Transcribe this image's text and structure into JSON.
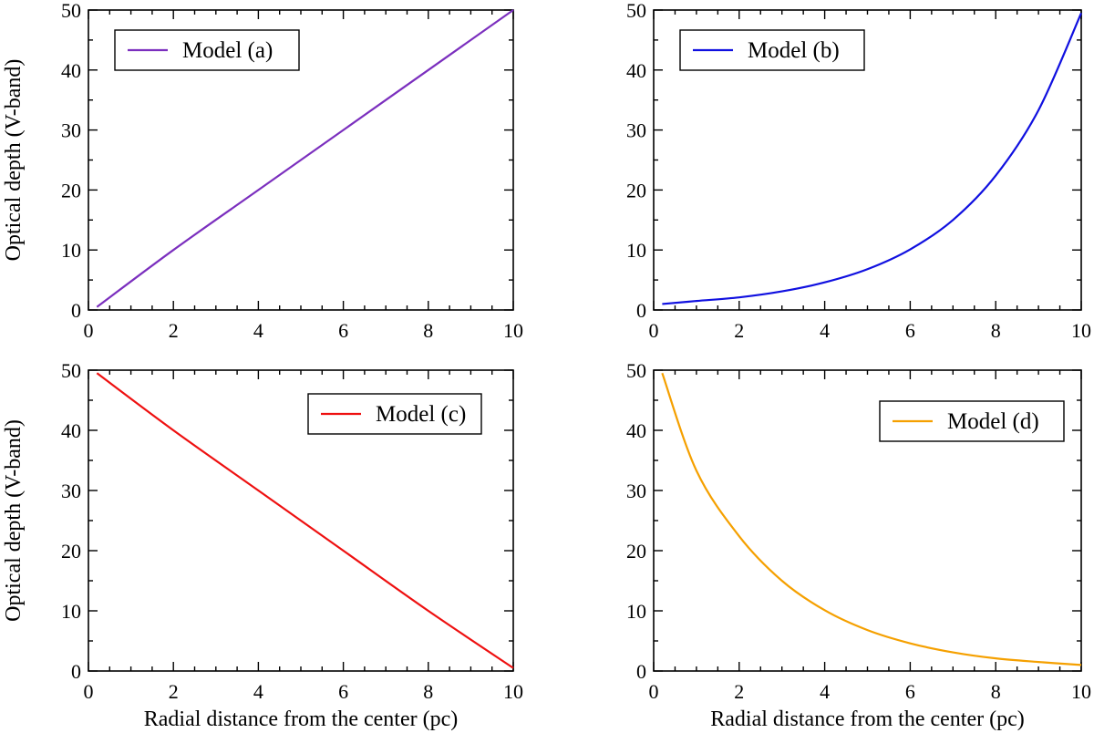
{
  "chart_data": [
    {
      "type": "line",
      "panel": "top-left",
      "series": [
        {
          "name": "Model (a)",
          "color": "#7b2fbe",
          "x": [
            0.2,
            2,
            4,
            6,
            8,
            10
          ],
          "y": [
            0.5,
            10,
            20,
            30,
            40,
            50
          ]
        }
      ],
      "xlim": [
        0,
        10
      ],
      "ylim": [
        0,
        50
      ],
      "xticks": [
        "0",
        "2",
        "4",
        "6",
        "8",
        "10"
      ],
      "yticks": [
        "0",
        "10",
        "20",
        "30",
        "40",
        "50"
      ],
      "xlabel": "",
      "ylabel": "Optical depth (V-band)",
      "legend_position": "top-left"
    },
    {
      "type": "line",
      "panel": "top-right",
      "series": [
        {
          "name": "Model (b)",
          "color": "#1010e0",
          "x": [
            0.2,
            1,
            2,
            3,
            4,
            5,
            6,
            7,
            8,
            9,
            10
          ],
          "y": [
            1.0,
            1.5,
            2.1,
            3.1,
            4.6,
            6.8,
            10.1,
            15.0,
            22.4,
            33.3,
            49.5
          ]
        }
      ],
      "xlim": [
        0,
        10
      ],
      "ylim": [
        0,
        50
      ],
      "xticks": [
        "0",
        "2",
        "4",
        "6",
        "8",
        "10"
      ],
      "yticks": [
        "0",
        "10",
        "20",
        "30",
        "40",
        "50"
      ],
      "xlabel": "",
      "ylabel": "",
      "legend_position": "top-left"
    },
    {
      "type": "line",
      "panel": "bottom-left",
      "series": [
        {
          "name": "Model (c)",
          "color": "#ee1010",
          "x": [
            0.2,
            2,
            4,
            6,
            8,
            10
          ],
          "y": [
            49.5,
            40,
            30,
            20,
            10,
            0.5
          ]
        }
      ],
      "xlim": [
        0,
        10
      ],
      "ylim": [
        0,
        50
      ],
      "xticks": [
        "0",
        "2",
        "4",
        "6",
        "8",
        "10"
      ],
      "yticks": [
        "0",
        "10",
        "20",
        "30",
        "40",
        "50"
      ],
      "xlabel": "Radial distance from the center (pc)",
      "ylabel": "Optical depth (V-band)",
      "legend_position": "top-right"
    },
    {
      "type": "line",
      "panel": "bottom-right",
      "series": [
        {
          "name": "Model (d)",
          "color": "#f5a000",
          "x": [
            0.2,
            1,
            2,
            3,
            4,
            5,
            6,
            7,
            8,
            9,
            10
          ],
          "y": [
            49.5,
            33.3,
            22.4,
            15.0,
            10.1,
            6.8,
            4.6,
            3.1,
            2.1,
            1.5,
            1.0
          ]
        }
      ],
      "xlim": [
        0,
        10
      ],
      "ylim": [
        0,
        50
      ],
      "xticks": [
        "0",
        "2",
        "4",
        "6",
        "8",
        "10"
      ],
      "yticks": [
        "0",
        "10",
        "20",
        "30",
        "40",
        "50"
      ],
      "xlabel": "Radial distance from the center (pc)",
      "ylabel": "",
      "legend_position": "top-right"
    }
  ]
}
